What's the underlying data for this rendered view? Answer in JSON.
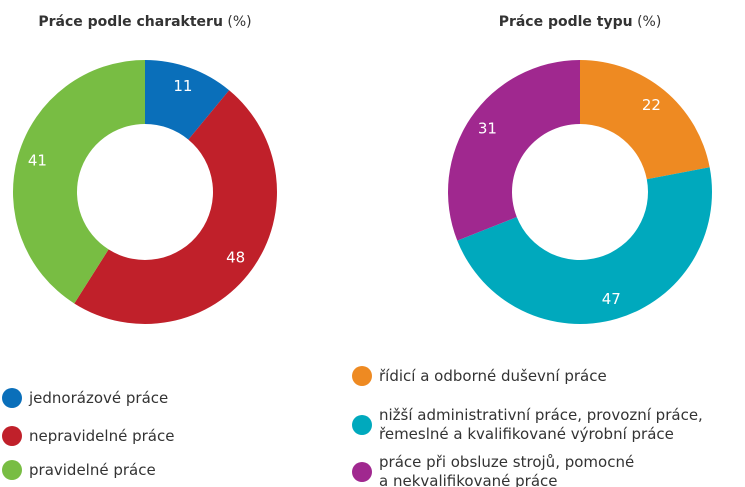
{
  "chart_data": [
    {
      "type": "donut",
      "title": "Práce podle charakteru",
      "unit": "(%)",
      "categories": [
        "jednorázové práce",
        "nepravidelné práce",
        "pravidelné práce"
      ],
      "values": [
        11,
        48,
        41
      ],
      "colors": [
        "#0a6fba",
        "#c0202a",
        "#78bd43"
      ]
    },
    {
      "type": "donut",
      "title": "Práce podle typu",
      "unit": "(%)",
      "categories": [
        "řídicí a odborné duševní práce",
        "nižší administrativní práce, provozní práce,\nřemeslné a kvalifikované výrobní práce",
        "práce při obsluze strojů, pomocné\na nekvalifikované práce"
      ],
      "values": [
        22,
        47,
        31
      ],
      "colors": [
        "#ee8a22",
        "#00a9bd",
        "#a0288f"
      ]
    }
  ]
}
